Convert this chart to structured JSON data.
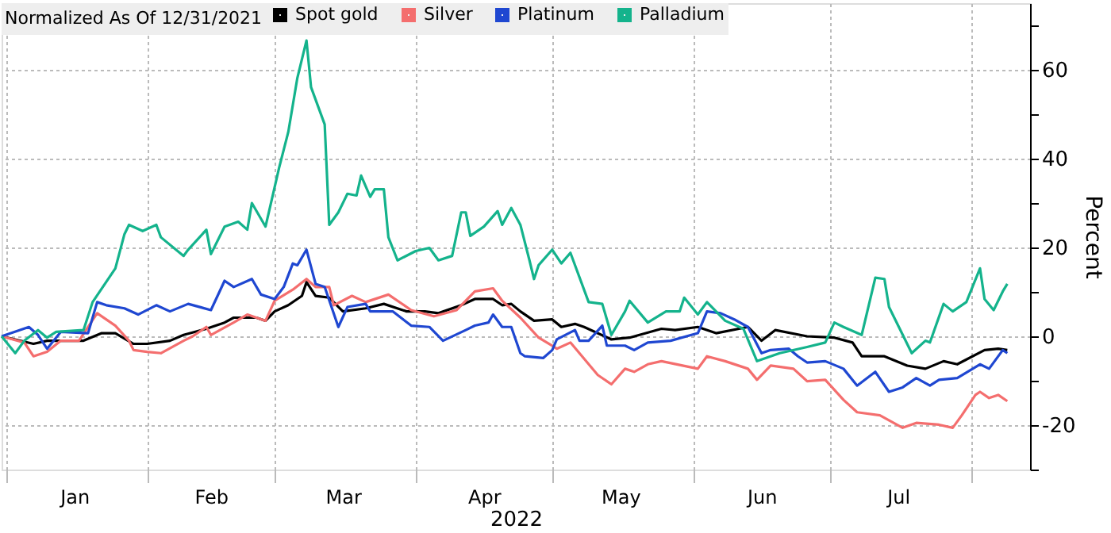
{
  "chart_data": {
    "type": "line",
    "legend_title": "Normalized As Of 12/31/2021",
    "xlabel": "2022",
    "ylabel": "Percent",
    "xlim": [
      "2021-12-31",
      "2022-08-14"
    ],
    "xticks": [
      {
        "value": "2022-01-01",
        "label": null
      },
      {
        "value": "2022-01-16",
        "label": "Jan"
      },
      {
        "value": "2022-02-01",
        "label": null
      },
      {
        "value": "2022-02-15",
        "label": "Feb"
      },
      {
        "value": "2022-03-01",
        "label": null
      },
      {
        "value": "2022-03-16",
        "label": "Mar"
      },
      {
        "value": "2022-04-01",
        "label": null
      },
      {
        "value": "2022-04-16",
        "label": "Apr"
      },
      {
        "value": "2022-05-01",
        "label": null
      },
      {
        "value": "2022-05-16",
        "label": "May"
      },
      {
        "value": "2022-06-01",
        "label": null
      },
      {
        "value": "2022-06-16",
        "label": "Jun"
      },
      {
        "value": "2022-07-01",
        "label": null
      },
      {
        "value": "2022-07-16",
        "label": "Jul"
      },
      {
        "value": "2022-08-01",
        "label": null
      }
    ],
    "ylim": [
      -30,
      75
    ],
    "yticks": [
      {
        "value": -30,
        "label": null
      },
      -20,
      {
        "value": -10,
        "label": null
      },
      0,
      {
        "value": 10,
        "label": null
      },
      20,
      {
        "value": 30,
        "label": null
      },
      40,
      {
        "value": 50,
        "label": null
      },
      60,
      {
        "value": 70,
        "label": null
      }
    ],
    "grid": true,
    "legend": "top left",
    "marker": "none",
    "line_style": "solid",
    "series": [
      {
        "name": "Spot gold",
        "color": "#000000",
        "x": [
          "2021-12-31",
          "2022-01-07",
          "2022-01-10",
          "2022-01-18",
          "2022-01-22",
          "2022-01-25",
          "2022-01-29",
          "2022-02-01",
          "2022-02-06",
          "2022-02-09",
          "2022-02-14",
          "2022-02-18",
          "2022-02-20",
          "2022-02-25",
          "2022-02-27",
          "2022-03-01",
          "2022-03-04",
          "2022-03-07",
          "2022-03-08",
          "2022-03-10",
          "2022-03-13",
          "2022-03-16",
          "2022-03-21",
          "2022-03-25",
          "2022-03-30",
          "2022-04-03",
          "2022-04-06",
          "2022-04-11",
          "2022-04-14",
          "2022-04-18",
          "2022-04-20",
          "2022-04-22",
          "2022-04-24",
          "2022-04-27",
          "2022-05-01",
          "2022-05-03",
          "2022-05-06",
          "2022-05-08",
          "2022-05-14",
          "2022-05-18",
          "2022-05-25",
          "2022-05-28",
          "2022-06-02",
          "2022-06-06",
          "2022-06-13",
          "2022-06-16",
          "2022-06-19",
          "2022-06-26",
          "2022-07-02",
          "2022-07-06",
          "2022-07-08",
          "2022-07-13",
          "2022-07-18",
          "2022-07-22",
          "2022-07-26",
          "2022-07-29",
          "2022-08-04",
          "2022-08-07",
          "2022-08-09"
        ],
        "values": [
          0,
          -1.7,
          -1.0,
          -1.0,
          0.7,
          0.7,
          -1.7,
          -1.7,
          -1.0,
          0.3,
          1.7,
          3.1,
          4.2,
          4.2,
          3.5,
          5.6,
          7.0,
          9.1,
          12.2,
          9.1,
          8.7,
          5.6,
          6.3,
          7.3,
          5.6,
          5.6,
          5.2,
          7.0,
          8.4,
          8.4,
          7.0,
          7.3,
          5.6,
          3.5,
          3.8,
          2.1,
          2.8,
          2.1,
          -0.7,
          -0.3,
          1.7,
          1.4,
          2.1,
          0.7,
          2.1,
          -1.0,
          1.4,
          0,
          -0.3,
          -1.4,
          -4.5,
          -4.5,
          -6.6,
          -7.3,
          -5.6,
          -6.3,
          -3.1,
          -2.8,
          -3.1
        ]
      },
      {
        "name": "Silver",
        "color": "#f46e6e",
        "x": [
          "2021-12-31",
          "2022-01-05",
          "2022-01-07",
          "2022-01-10",
          "2022-01-13",
          "2022-01-17",
          "2022-01-21",
          "2022-01-25",
          "2022-01-28",
          "2022-01-29",
          "2022-02-01",
          "2022-02-04",
          "2022-02-09",
          "2022-02-11",
          "2022-02-14",
          "2022-02-15",
          "2022-02-20",
          "2022-02-23",
          "2022-02-27",
          "2022-03-01",
          "2022-03-05",
          "2022-03-08",
          "2022-03-10",
          "2022-03-13",
          "2022-03-14",
          "2022-03-18",
          "2022-03-21",
          "2022-03-26",
          "2022-03-31",
          "2022-04-05",
          "2022-04-10",
          "2022-04-14",
          "2022-04-18",
          "2022-04-20",
          "2022-04-24",
          "2022-04-28",
          "2022-05-01",
          "2022-05-02",
          "2022-05-05",
          "2022-05-11",
          "2022-05-14",
          "2022-05-17",
          "2022-05-19",
          "2022-05-22",
          "2022-05-25",
          "2022-06-02",
          "2022-06-04",
          "2022-06-08",
          "2022-06-13",
          "2022-06-15",
          "2022-06-18",
          "2022-06-23",
          "2022-06-26",
          "2022-06-30",
          "2022-07-04",
          "2022-07-07",
          "2022-07-12",
          "2022-07-17",
          "2022-07-20",
          "2022-07-25",
          "2022-07-28",
          "2022-07-30",
          "2022-08-02",
          "2022-08-03",
          "2022-08-05",
          "2022-08-07",
          "2022-08-09"
        ],
        "values": [
          0,
          -1.4,
          -4.5,
          -3.5,
          -1.0,
          -1.0,
          5.2,
          2.4,
          -1.0,
          -3.1,
          -3.5,
          -3.8,
          -1.0,
          0,
          2.1,
          0.3,
          3.1,
          4.9,
          3.5,
          8.0,
          10.5,
          12.9,
          11.1,
          11.1,
          7.0,
          9.1,
          7.7,
          9.4,
          5.9,
          4.5,
          5.9,
          10.1,
          10.8,
          8.0,
          4.2,
          -0.3,
          -2.1,
          -2.8,
          -1.4,
          -8.7,
          -10.8,
          -7.3,
          -8.0,
          -6.3,
          -5.6,
          -7.3,
          -4.5,
          -5.6,
          -7.3,
          -9.8,
          -6.6,
          -7.3,
          -10.1,
          -9.8,
          -14.3,
          -17.1,
          -17.8,
          -20.6,
          -19.5,
          -19.9,
          -20.6,
          -17.8,
          -13.2,
          -12.5,
          -13.9,
          -13.2,
          -14.6
        ]
      },
      {
        "name": "Platinum",
        "color": "#1f47d1",
        "x": [
          "2021-12-31",
          "2022-01-06",
          "2022-01-08",
          "2022-01-10",
          "2022-01-13",
          "2022-01-19",
          "2022-01-21",
          "2022-01-23",
          "2022-01-27",
          "2022-01-30",
          "2022-02-03",
          "2022-02-06",
          "2022-02-10",
          "2022-02-15",
          "2022-02-18",
          "2022-02-20",
          "2022-02-24",
          "2022-02-26",
          "2022-03-01",
          "2022-03-03",
          "2022-03-05",
          "2022-03-06",
          "2022-03-08",
          "2022-03-10",
          "2022-03-12",
          "2022-03-15",
          "2022-03-17",
          "2022-03-21",
          "2022-03-22",
          "2022-03-27",
          "2022-03-31",
          "2022-04-04",
          "2022-04-07",
          "2022-04-12",
          "2022-04-14",
          "2022-04-17",
          "2022-04-18",
          "2022-04-20",
          "2022-04-22",
          "2022-04-24",
          "2022-04-25",
          "2022-04-29",
          "2022-05-01",
          "2022-05-02",
          "2022-05-06",
          "2022-05-07",
          "2022-05-09",
          "2022-05-12",
          "2022-05-13",
          "2022-05-17",
          "2022-05-19",
          "2022-05-22",
          "2022-05-27",
          "2022-06-02",
          "2022-06-04",
          "2022-06-07",
          "2022-06-10",
          "2022-06-13",
          "2022-06-16",
          "2022-06-18",
          "2022-06-22",
          "2022-06-24",
          "2022-06-26",
          "2022-06-30",
          "2022-07-04",
          "2022-07-07",
          "2022-07-11",
          "2022-07-14",
          "2022-07-17",
          "2022-07-20",
          "2022-07-23",
          "2022-07-25",
          "2022-07-29",
          "2022-08-03",
          "2022-08-05",
          "2022-08-08",
          "2022-08-09"
        ],
        "values": [
          0,
          2.1,
          0.3,
          -2.8,
          1.0,
          0.7,
          7.7,
          7.0,
          6.3,
          4.9,
          7.0,
          5.6,
          7.3,
          5.9,
          12.5,
          11.1,
          12.9,
          9.4,
          8.4,
          11.1,
          16.4,
          16.0,
          19.5,
          11.8,
          11.1,
          2.1,
          6.6,
          7.3,
          5.6,
          5.6,
          2.4,
          2.1,
          -1.0,
          1.4,
          2.4,
          3.1,
          4.9,
          2.1,
          2.1,
          -3.8,
          -4.5,
          -4.9,
          -3.1,
          -0.7,
          1.4,
          -1.0,
          -1.0,
          2.4,
          -2.1,
          -2.1,
          -3.1,
          -1.4,
          -1.0,
          0.7,
          5.6,
          5.2,
          3.8,
          2.1,
          -3.8,
          -3.1,
          -2.8,
          -4.5,
          -5.9,
          -5.6,
          -7.3,
          -11.1,
          -8.0,
          -12.5,
          -11.5,
          -9.4,
          -11.1,
          -9.8,
          -9.4,
          -6.3,
          -7.3,
          -3.1,
          -3.8
        ]
      },
      {
        "name": "Palladium",
        "color": "#14b38c",
        "x": [
          "2021-12-31",
          "2022-01-03",
          "2022-01-05",
          "2022-01-08",
          "2022-01-10",
          "2022-01-12",
          "2022-01-18",
          "2022-01-20",
          "2022-01-25",
          "2022-01-27",
          "2022-01-28",
          "2022-01-31",
          "2022-02-03",
          "2022-02-04",
          "2022-02-09",
          "2022-02-10",
          "2022-02-14",
          "2022-02-15",
          "2022-02-18",
          "2022-02-21",
          "2022-02-23",
          "2022-02-24",
          "2022-02-27",
          "2022-03-02",
          "2022-03-04",
          "2022-03-06",
          "2022-03-08",
          "2022-03-09",
          "2022-03-12",
          "2022-03-13",
          "2022-03-15",
          "2022-03-17",
          "2022-03-19",
          "2022-03-20",
          "2022-03-22",
          "2022-03-23",
          "2022-03-25",
          "2022-03-26",
          "2022-03-28",
          "2022-04-01",
          "2022-04-04",
          "2022-04-06",
          "2022-04-09",
          "2022-04-11",
          "2022-04-12",
          "2022-04-13",
          "2022-04-16",
          "2022-04-19",
          "2022-04-20",
          "2022-04-22",
          "2022-04-24",
          "2022-04-26",
          "2022-04-27",
          "2022-04-28",
          "2022-05-01",
          "2022-05-03",
          "2022-05-05",
          "2022-05-09",
          "2022-05-12",
          "2022-05-14",
          "2022-05-17",
          "2022-05-18",
          "2022-05-22",
          "2022-05-26",
          "2022-05-29",
          "2022-05-30",
          "2022-06-02",
          "2022-06-04",
          "2022-06-08",
          "2022-06-12",
          "2022-06-15",
          "2022-06-20",
          "2022-06-26",
          "2022-06-30",
          "2022-07-02",
          "2022-07-04",
          "2022-07-08",
          "2022-07-11",
          "2022-07-13",
          "2022-07-14",
          "2022-07-19",
          "2022-07-22",
          "2022-07-23",
          "2022-07-26",
          "2022-07-28",
          "2022-07-31",
          "2022-08-03",
          "2022-08-04",
          "2022-08-06",
          "2022-08-08",
          "2022-08-09"
        ],
        "values": [
          0,
          -3.8,
          -1.0,
          1.4,
          -0.3,
          1.0,
          1.4,
          7.7,
          15.3,
          23,
          25.1,
          23.7,
          25.1,
          22.3,
          18.1,
          19.5,
          24,
          18.5,
          24.7,
          25.8,
          24,
          30,
          24.7,
          38,
          46,
          58.2,
          66.6,
          56.1,
          47.7,
          25.1,
          27.9,
          32.1,
          31.7,
          36.2,
          31.4,
          33.1,
          33.1,
          22.3,
          17.1,
          19.2,
          19.9,
          17.1,
          18.1,
          27.9,
          27.9,
          22.6,
          24.7,
          28.2,
          25.1,
          28.9,
          25.1,
          17.1,
          12.9,
          16.0,
          19.5,
          16.4,
          18.8,
          7.7,
          7.3,
          0.3,
          5.6,
          8.0,
          3.1,
          5.6,
          5.6,
          8.7,
          4.9,
          7.7,
          3.5,
          1.7,
          -5.6,
          -3.8,
          -2.4,
          -1.4,
          3.1,
          2.1,
          0.3,
          13.2,
          12.9,
          6.6,
          -3.8,
          -1.0,
          -1.4,
          7.3,
          5.6,
          7.7,
          15.3,
          8.4,
          5.9,
          10.1,
          11.8
        ]
      }
    ]
  }
}
